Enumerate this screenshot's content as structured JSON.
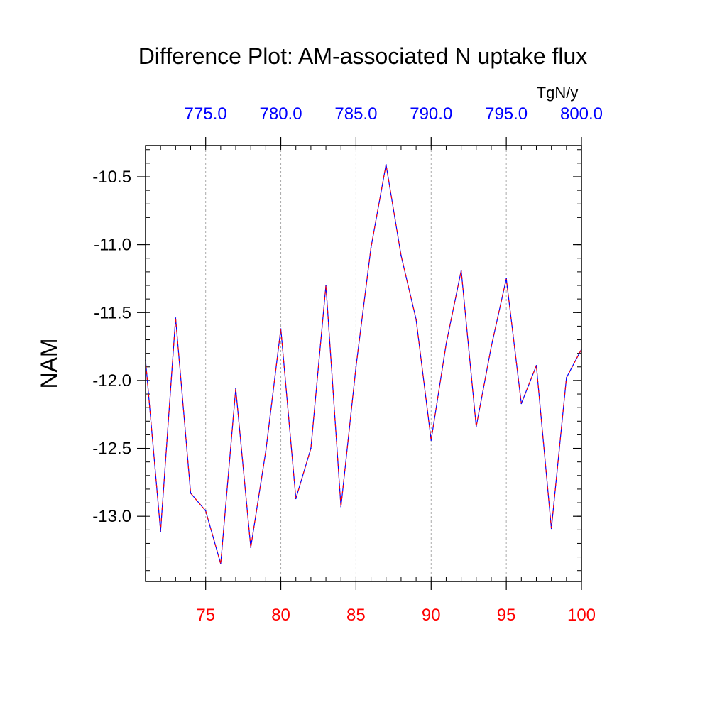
{
  "chart_data": {
    "type": "line",
    "title": "Difference Plot: AM-associated N uptake flux",
    "ylabel": "NAM",
    "units_label": "TgN/y",
    "x": [
      71,
      72,
      73,
      74,
      75,
      76,
      77,
      78,
      79,
      80,
      81,
      82,
      83,
      84,
      85,
      86,
      87,
      88,
      89,
      90,
      91,
      92,
      93,
      94,
      95,
      96,
      97,
      98,
      99,
      100
    ],
    "series": [
      {
        "values": [
          -11.85,
          -13.11,
          -11.54,
          -12.83,
          -12.96,
          -13.35,
          -12.06,
          -13.23,
          -12.52,
          -11.62,
          -12.87,
          -12.5,
          -11.3,
          -12.93,
          -11.9,
          -11.02,
          -10.41,
          -11.08,
          -11.55,
          -12.44,
          -11.73,
          -11.19,
          -12.34,
          -11.75,
          -11.25,
          -12.17,
          -11.89,
          -13.09,
          -11.98,
          -11.77
        ],
        "color_primary": "#0000ff",
        "color_dash": "#ff0000"
      }
    ],
    "xlim": [
      71,
      100
    ],
    "ylim": [
      -13.48,
      -10.27
    ],
    "bottom_axis": {
      "ticks": [
        75,
        80,
        85,
        90,
        95,
        100
      ],
      "tick_labels": [
        "75",
        "80",
        "85",
        "90",
        "95",
        "100"
      ],
      "label_color": "#ff0000"
    },
    "top_axis": {
      "ticks": [
        75,
        80,
        85,
        90,
        95,
        100
      ],
      "tick_labels": [
        "775.0",
        "780.0",
        "785.0",
        "790.0",
        "795.0",
        "800.0"
      ],
      "label_color": "#0000ff"
    },
    "left_axis": {
      "ticks": [
        -10.5,
        -11.0,
        -11.5,
        -12.0,
        -12.5,
        -13.0
      ],
      "tick_labels": [
        "-10.5",
        "-11.0",
        "-11.5",
        "-12.0",
        "-12.5",
        "-13.0"
      ]
    },
    "grid": "vertical dashed at major x ticks",
    "legend": "none"
  }
}
